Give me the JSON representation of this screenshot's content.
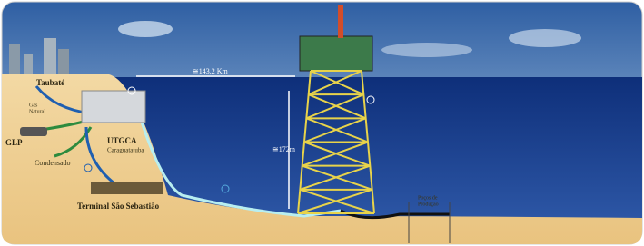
{
  "labels": {
    "city": "Taubaté",
    "gas_line": [
      "Gás",
      "Natural"
    ],
    "glp": "GLP",
    "condensate": "Condensado",
    "facility": "UTGCA",
    "facility_location": "Caraguatatuba",
    "terminal": "Terminal São Sebastião",
    "distance": "≅143,2 Km",
    "depth": "≅172m",
    "wells": [
      "Poços de",
      "Produção"
    ]
  }
}
